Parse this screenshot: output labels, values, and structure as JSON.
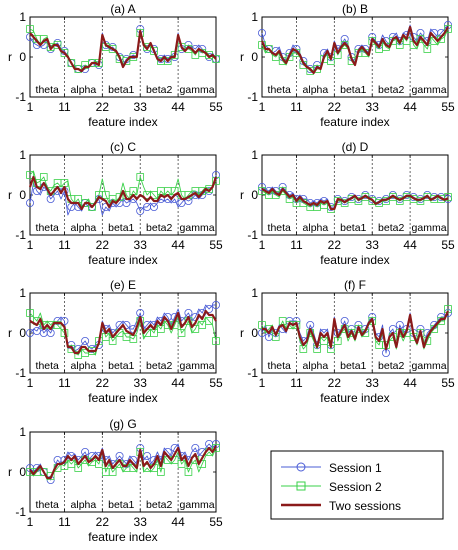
{
  "chart_data": {
    "type": "line",
    "x_ticks": [
      1,
      11,
      22,
      33,
      44,
      55
    ],
    "y_ticks": [
      -1,
      0,
      1
    ],
    "xlim": [
      1,
      55
    ],
    "ylim": [
      -1,
      1
    ],
    "xlabel": "feature index",
    "ylabel": "r",
    "band_boundaries": [
      11,
      22,
      33,
      44
    ],
    "bands": [
      "theta",
      "alpha",
      "beta1",
      "beta2",
      "gamma"
    ],
    "colors": {
      "session1": "#4a5cd6",
      "session2": "#39d048",
      "two": "#8b1a1a"
    },
    "legend": {
      "placement": "bottom-right",
      "entries": [
        "Session 1",
        "Session 2",
        "Two sessions"
      ]
    },
    "panels": [
      {
        "title": "(a) A",
        "session1": [
          0.5,
          0.35,
          0.3,
          0.25,
          0.3,
          0.4,
          0.2,
          0.3,
          0.35,
          0.2,
          0.15,
          0.0,
          -0.15,
          -0.3,
          -0.3,
          -0.35,
          -0.3,
          -0.25,
          -0.15,
          -0.2,
          -0.2,
          0.6,
          0.3,
          0.2,
          0.25,
          0.15,
          0.0,
          -0.2,
          -0.05,
          0.0,
          0.05,
          0.0,
          0.7,
          0.3,
          0.2,
          0.35,
          0.2,
          0.0,
          -0.05,
          0.05,
          -0.05,
          0.05,
          0.0,
          0.6,
          0.2,
          0.15,
          0.3,
          0.25,
          0.2,
          0.3,
          0.2,
          0.1,
          0.0,
          0.1,
          -0.05
        ],
        "session2": [
          0.7,
          0.65,
          0.45,
          0.3,
          0.45,
          0.5,
          0.25,
          0.35,
          0.3,
          0.15,
          0.1,
          0.05,
          -0.15,
          -0.25,
          -0.3,
          -0.35,
          -0.2,
          -0.25,
          -0.15,
          -0.1,
          -0.15,
          0.55,
          0.25,
          0.3,
          0.2,
          0.1,
          -0.05,
          -0.25,
          -0.1,
          -0.05,
          0.0,
          0.05,
          0.6,
          0.35,
          0.25,
          0.3,
          0.15,
          -0.05,
          -0.1,
          0.0,
          -0.1,
          0.0,
          0.05,
          0.55,
          0.25,
          0.2,
          0.2,
          0.15,
          0.05,
          0.2,
          0.1,
          0.15,
          0.05,
          0.0,
          -0.05
        ],
        "two": [
          0.6,
          0.5,
          0.4,
          0.3,
          0.4,
          0.45,
          0.2,
          0.3,
          0.3,
          0.15,
          0.1,
          0.0,
          -0.15,
          -0.3,
          -0.3,
          -0.35,
          -0.25,
          -0.25,
          -0.15,
          -0.15,
          -0.2,
          0.55,
          0.3,
          0.25,
          0.2,
          0.15,
          0.0,
          -0.25,
          -0.1,
          0.0,
          0.0,
          0.0,
          0.65,
          0.3,
          0.2,
          0.35,
          0.15,
          -0.05,
          -0.1,
          0.0,
          -0.1,
          0.0,
          0.0,
          0.55,
          0.25,
          0.15,
          0.25,
          0.2,
          0.1,
          0.2,
          0.15,
          0.1,
          0.0,
          0.05,
          -0.05
        ]
      },
      {
        "title": "(b) B",
        "session1": [
          0.6,
          0.3,
          0.2,
          0.1,
          0.15,
          0.25,
          0.0,
          -0.1,
          0.1,
          0.3,
          0.2,
          0.1,
          -0.1,
          -0.2,
          -0.3,
          -0.35,
          -0.2,
          -0.3,
          0.1,
          0.2,
          0.0,
          0.4,
          0.2,
          0.3,
          0.45,
          0.3,
          0.0,
          -0.15,
          0.2,
          0.3,
          0.2,
          0.1,
          0.5,
          0.4,
          0.3,
          0.55,
          0.4,
          0.3,
          0.5,
          0.6,
          0.4,
          0.6,
          0.55,
          0.8,
          0.5,
          0.4,
          0.6,
          0.5,
          0.4,
          0.7,
          0.6,
          0.5,
          0.6,
          0.7,
          0.8
        ],
        "session2": [
          0.3,
          0.1,
          0.2,
          0.05,
          0.0,
          0.1,
          -0.1,
          -0.2,
          0.0,
          0.1,
          0.1,
          0.0,
          -0.2,
          -0.25,
          -0.35,
          -0.4,
          -0.3,
          -0.3,
          -0.05,
          0.1,
          -0.1,
          0.3,
          0.05,
          0.2,
          0.3,
          0.2,
          -0.1,
          -0.2,
          0.1,
          0.2,
          0.1,
          0.0,
          0.4,
          0.3,
          0.2,
          0.4,
          0.25,
          0.2,
          0.4,
          0.45,
          0.3,
          0.5,
          0.4,
          0.7,
          0.3,
          0.2,
          0.45,
          0.3,
          0.2,
          0.5,
          0.4,
          0.3,
          0.45,
          0.5,
          0.7
        ],
        "two": [
          0.4,
          0.2,
          0.2,
          0.1,
          0.05,
          0.15,
          -0.05,
          -0.15,
          0.05,
          0.2,
          0.15,
          0.05,
          -0.15,
          -0.25,
          -0.3,
          -0.4,
          -0.25,
          -0.3,
          0.0,
          0.15,
          -0.05,
          0.35,
          0.1,
          0.25,
          0.35,
          0.25,
          -0.05,
          -0.2,
          0.15,
          0.25,
          0.15,
          0.05,
          0.45,
          0.35,
          0.25,
          0.45,
          0.3,
          0.25,
          0.45,
          0.5,
          0.35,
          0.55,
          0.45,
          0.75,
          0.4,
          0.3,
          0.5,
          0.4,
          0.3,
          0.6,
          0.5,
          0.4,
          0.5,
          0.6,
          0.75
        ]
      },
      {
        "title": "(c) C",
        "session1": [
          -0.2,
          0.3,
          0.1,
          0.0,
          0.2,
          0.1,
          -0.1,
          0.0,
          0.1,
          -0.1,
          0.1,
          -0.5,
          -0.3,
          -0.2,
          -0.3,
          -0.4,
          -0.2,
          -0.3,
          -0.3,
          -0.2,
          -0.1,
          -0.5,
          -0.3,
          -0.4,
          -0.2,
          -0.3,
          -0.2,
          -0.1,
          -0.2,
          -0.15,
          -0.1,
          -0.2,
          -0.4,
          -0.3,
          -0.3,
          -0.2,
          -0.3,
          -0.2,
          -0.1,
          -0.15,
          -0.1,
          -0.2,
          -0.1,
          -0.3,
          -0.2,
          -0.1,
          -0.15,
          -0.1,
          0.0,
          -0.1,
          0.0,
          0.1,
          0.1,
          0.2,
          0.5
        ],
        "session2": [
          0.5,
          0.6,
          0.3,
          0.35,
          0.45,
          0.2,
          0.1,
          0.25,
          0.3,
          0.2,
          0.3,
          0.35,
          -0.1,
          -0.2,
          -0.1,
          -0.3,
          -0.2,
          -0.1,
          -0.3,
          -0.15,
          0.0,
          0.4,
          0.0,
          -0.2,
          -0.1,
          -0.15,
          -0.05,
          0.3,
          0.0,
          -0.1,
          0.1,
          0.0,
          0.45,
          0.2,
          0.0,
          0.1,
          0.0,
          -0.1,
          0.1,
          0.0,
          0.1,
          0.0,
          0.1,
          0.4,
          0.0,
          -0.1,
          0.0,
          0.1,
          0.1,
          0.0,
          0.1,
          0.2,
          0.15,
          0.2,
          0.35
        ],
        "two": [
          0.2,
          0.45,
          0.2,
          0.15,
          0.3,
          0.15,
          0.0,
          0.1,
          0.2,
          0.05,
          0.2,
          -0.1,
          -0.2,
          -0.2,
          -0.2,
          -0.35,
          -0.2,
          -0.2,
          -0.3,
          -0.2,
          -0.05,
          -0.1,
          -0.15,
          -0.3,
          -0.15,
          -0.2,
          -0.1,
          0.1,
          -0.1,
          -0.1,
          0.0,
          -0.1,
          0.0,
          -0.05,
          -0.15,
          -0.05,
          -0.15,
          -0.15,
          0.0,
          -0.05,
          0.0,
          -0.1,
          0.0,
          0.05,
          -0.1,
          -0.1,
          -0.05,
          0.0,
          0.05,
          -0.05,
          0.05,
          0.15,
          0.1,
          0.2,
          0.45
        ]
      },
      {
        "title": "(d) D",
        "session1": [
          0.2,
          0.15,
          0.1,
          0.2,
          0.1,
          0.05,
          0.2,
          0.1,
          0.0,
          0.05,
          -0.1,
          0.0,
          -0.1,
          -0.1,
          -0.2,
          -0.15,
          -0.2,
          -0.1,
          -0.15,
          -0.1,
          -0.3,
          -0.3,
          -0.1,
          -0.1,
          -0.15,
          -0.1,
          -0.05,
          0.0,
          -0.1,
          -0.05,
          0.0,
          -0.05,
          -0.1,
          -0.2,
          -0.15,
          -0.1,
          -0.1,
          -0.05,
          0.0,
          -0.05,
          -0.1,
          -0.05,
          0.0,
          0.0,
          -0.05,
          -0.1,
          -0.1,
          -0.05,
          0.0,
          -0.1,
          -0.05,
          0.0,
          -0.05,
          -0.1,
          -0.1
        ],
        "session2": [
          0.1,
          0.05,
          0.0,
          0.1,
          0.0,
          -0.05,
          0.1,
          0.0,
          -0.1,
          -0.05,
          -0.2,
          -0.1,
          -0.2,
          -0.25,
          -0.3,
          -0.2,
          -0.3,
          -0.2,
          -0.25,
          -0.2,
          -0.35,
          -0.35,
          -0.15,
          -0.15,
          -0.2,
          -0.15,
          -0.1,
          -0.05,
          -0.15,
          -0.1,
          -0.05,
          -0.1,
          -0.15,
          -0.25,
          -0.2,
          -0.15,
          -0.15,
          -0.1,
          -0.05,
          -0.1,
          -0.15,
          -0.1,
          -0.05,
          -0.05,
          -0.1,
          -0.15,
          -0.15,
          -0.1,
          -0.05,
          -0.15,
          -0.1,
          -0.05,
          -0.1,
          -0.15,
          -0.05
        ],
        "two": [
          0.15,
          0.1,
          0.05,
          0.15,
          0.05,
          0.0,
          0.15,
          0.05,
          -0.05,
          0.0,
          -0.15,
          -0.05,
          -0.15,
          -0.2,
          -0.25,
          -0.2,
          -0.25,
          -0.15,
          -0.2,
          -0.15,
          -0.35,
          -0.35,
          -0.1,
          -0.12,
          -0.18,
          -0.12,
          -0.08,
          -0.02,
          -0.12,
          -0.08,
          -0.02,
          -0.08,
          -0.12,
          -0.22,
          -0.18,
          -0.12,
          -0.12,
          -0.08,
          -0.02,
          -0.08,
          -0.12,
          -0.08,
          -0.02,
          -0.02,
          -0.08,
          -0.12,
          -0.12,
          -0.08,
          -0.02,
          -0.12,
          -0.08,
          -0.02,
          -0.08,
          -0.12,
          -0.08
        ]
      },
      {
        "title": "(e) E",
        "session1": [
          0.0,
          0.1,
          0.05,
          0.2,
          0.0,
          0.1,
          0.0,
          0.2,
          0.3,
          0.4,
          0.3,
          -0.4,
          -0.3,
          -0.45,
          -0.4,
          -0.3,
          -0.2,
          -0.35,
          -0.4,
          -0.3,
          -0.3,
          0.3,
          0.1,
          0.2,
          0.0,
          0.1,
          0.2,
          0.3,
          0.2,
          0.1,
          0.1,
          0.3,
          0.5,
          0.1,
          0.2,
          0.3,
          0.2,
          0.4,
          0.3,
          0.5,
          0.4,
          0.2,
          0.4,
          0.6,
          0.3,
          0.4,
          0.5,
          0.3,
          0.4,
          0.6,
          0.5,
          0.7,
          0.6,
          0.7,
          0.7
        ],
        "session2": [
          0.5,
          0.4,
          0.3,
          0.5,
          0.2,
          0.3,
          0.2,
          0.3,
          0.2,
          0.1,
          0.0,
          -0.3,
          -0.4,
          -0.5,
          -0.55,
          -0.4,
          -0.5,
          -0.5,
          -0.45,
          -0.55,
          -0.2,
          0.2,
          -0.1,
          0.0,
          -0.2,
          -0.1,
          0.0,
          0.05,
          -0.1,
          -0.1,
          -0.15,
          0.0,
          0.3,
          -0.15,
          0.0,
          0.1,
          0.0,
          0.2,
          0.1,
          0.3,
          0.2,
          0.0,
          0.2,
          0.4,
          0.0,
          0.1,
          0.3,
          0.0,
          0.1,
          0.3,
          0.2,
          0.4,
          0.3,
          0.2,
          -0.2
        ],
        "two": [
          0.3,
          0.25,
          0.2,
          0.35,
          0.1,
          0.2,
          0.1,
          0.25,
          0.25,
          0.25,
          0.15,
          -0.35,
          -0.35,
          -0.5,
          -0.5,
          -0.35,
          -0.35,
          -0.45,
          -0.45,
          -0.45,
          -0.25,
          0.25,
          0.0,
          0.1,
          -0.1,
          0.0,
          0.1,
          0.2,
          0.05,
          0.0,
          -0.05,
          0.15,
          0.4,
          0.0,
          0.1,
          0.2,
          0.1,
          0.3,
          0.2,
          0.4,
          0.3,
          0.1,
          0.3,
          0.5,
          0.15,
          0.25,
          0.4,
          0.15,
          0.25,
          0.45,
          0.35,
          0.55,
          0.45,
          0.45,
          0.3
        ]
      },
      {
        "title": "(f) F",
        "session1": [
          0.0,
          0.2,
          -0.1,
          0.1,
          0.0,
          0.2,
          0.1,
          0.0,
          0.3,
          0.3,
          0.3,
          0.0,
          -0.2,
          -0.1,
          0.2,
          0.0,
          -0.3,
          0.1,
          0.0,
          0.1,
          -0.3,
          0.4,
          0.0,
          0.1,
          0.3,
          0.0,
          0.1,
          -0.1,
          0.2,
          0.0,
          0.1,
          0.3,
          0.4,
          0.0,
          -0.1,
          0.2,
          -0.5,
          0.0,
          0.1,
          -0.3,
          0.2,
          0.0,
          0.1,
          0.5,
          0.0,
          -0.2,
          0.1,
          -0.3,
          0.0,
          0.1,
          0.2,
          0.3,
          0.4,
          0.4,
          0.5
        ],
        "session2": [
          0.2,
          0.0,
          0.1,
          0.2,
          -0.1,
          0.1,
          0.3,
          0.1,
          0.2,
          0.1,
          0.2,
          -0.2,
          -0.4,
          -0.3,
          0.0,
          -0.2,
          -0.4,
          -0.1,
          -0.2,
          -0.1,
          -0.4,
          0.3,
          -0.2,
          0.0,
          0.1,
          -0.2,
          0.0,
          -0.2,
          0.1,
          -0.1,
          0.0,
          0.2,
          0.3,
          -0.2,
          -0.3,
          0.0,
          -0.3,
          -0.2,
          -0.1,
          -0.4,
          0.0,
          -0.2,
          0.0,
          0.4,
          -0.1,
          -0.3,
          0.0,
          -0.4,
          -0.2,
          0.0,
          0.1,
          0.2,
          0.3,
          0.3,
          0.6
        ],
        "two": [
          0.1,
          0.1,
          0.0,
          0.15,
          -0.05,
          0.15,
          0.2,
          0.05,
          0.25,
          0.2,
          0.25,
          -0.1,
          -0.3,
          -0.2,
          0.1,
          -0.1,
          -0.35,
          0.0,
          -0.1,
          0.0,
          -0.35,
          0.35,
          -0.1,
          0.05,
          0.2,
          -0.1,
          0.05,
          -0.15,
          0.15,
          -0.05,
          0.05,
          0.25,
          0.35,
          -0.1,
          -0.2,
          0.1,
          -0.4,
          -0.1,
          0.0,
          -0.35,
          0.1,
          -0.1,
          0.05,
          0.45,
          -0.05,
          -0.25,
          0.05,
          -0.35,
          -0.1,
          0.05,
          0.15,
          0.25,
          0.35,
          0.35,
          0.55
        ]
      },
      {
        "title": "(g) G",
        "session1": [
          0.1,
          0.0,
          0.1,
          0.2,
          0.0,
          -0.1,
          -0.2,
          0.1,
          0.3,
          0.2,
          0.3,
          0.5,
          0.4,
          0.45,
          0.3,
          0.4,
          0.5,
          0.3,
          0.4,
          0.5,
          0.4,
          0.6,
          0.3,
          0.4,
          0.2,
          0.3,
          0.4,
          0.3,
          0.2,
          0.4,
          0.3,
          0.2,
          0.6,
          0.3,
          0.4,
          0.2,
          0.3,
          0.5,
          0.3,
          0.6,
          0.5,
          0.4,
          0.6,
          0.7,
          0.4,
          0.5,
          0.3,
          0.5,
          0.6,
          0.4,
          0.5,
          0.6,
          0.7,
          0.6,
          0.7
        ],
        "session2": [
          0.0,
          -0.1,
          0.0,
          0.1,
          0.0,
          -0.2,
          -0.1,
          0.0,
          0.1,
          0.2,
          0.15,
          0.3,
          0.2,
          0.3,
          0.1,
          0.2,
          0.3,
          0.15,
          0.25,
          0.3,
          0.2,
          0.5,
          0.0,
          0.2,
          0.0,
          0.1,
          0.2,
          0.0,
          0.1,
          0.2,
          0.1,
          0.0,
          0.5,
          0.0,
          0.1,
          0.0,
          0.1,
          0.3,
          0.0,
          0.4,
          0.3,
          0.2,
          0.3,
          0.5,
          0.2,
          0.3,
          0.0,
          0.2,
          0.3,
          0.0,
          0.2,
          0.4,
          0.5,
          0.4,
          0.6
        ],
        "two": [
          0.05,
          -0.05,
          0.05,
          0.15,
          0.0,
          -0.15,
          -0.15,
          0.05,
          0.2,
          0.2,
          0.25,
          0.4,
          0.3,
          0.4,
          0.2,
          0.3,
          0.4,
          0.25,
          0.3,
          0.4,
          0.3,
          0.55,
          0.15,
          0.3,
          0.1,
          0.2,
          0.3,
          0.15,
          0.15,
          0.3,
          0.2,
          0.1,
          0.55,
          0.15,
          0.25,
          0.1,
          0.2,
          0.4,
          0.15,
          0.5,
          0.4,
          0.3,
          0.45,
          0.6,
          0.3,
          0.4,
          0.15,
          0.35,
          0.45,
          0.2,
          0.35,
          0.5,
          0.6,
          0.5,
          0.65
        ]
      }
    ]
  }
}
